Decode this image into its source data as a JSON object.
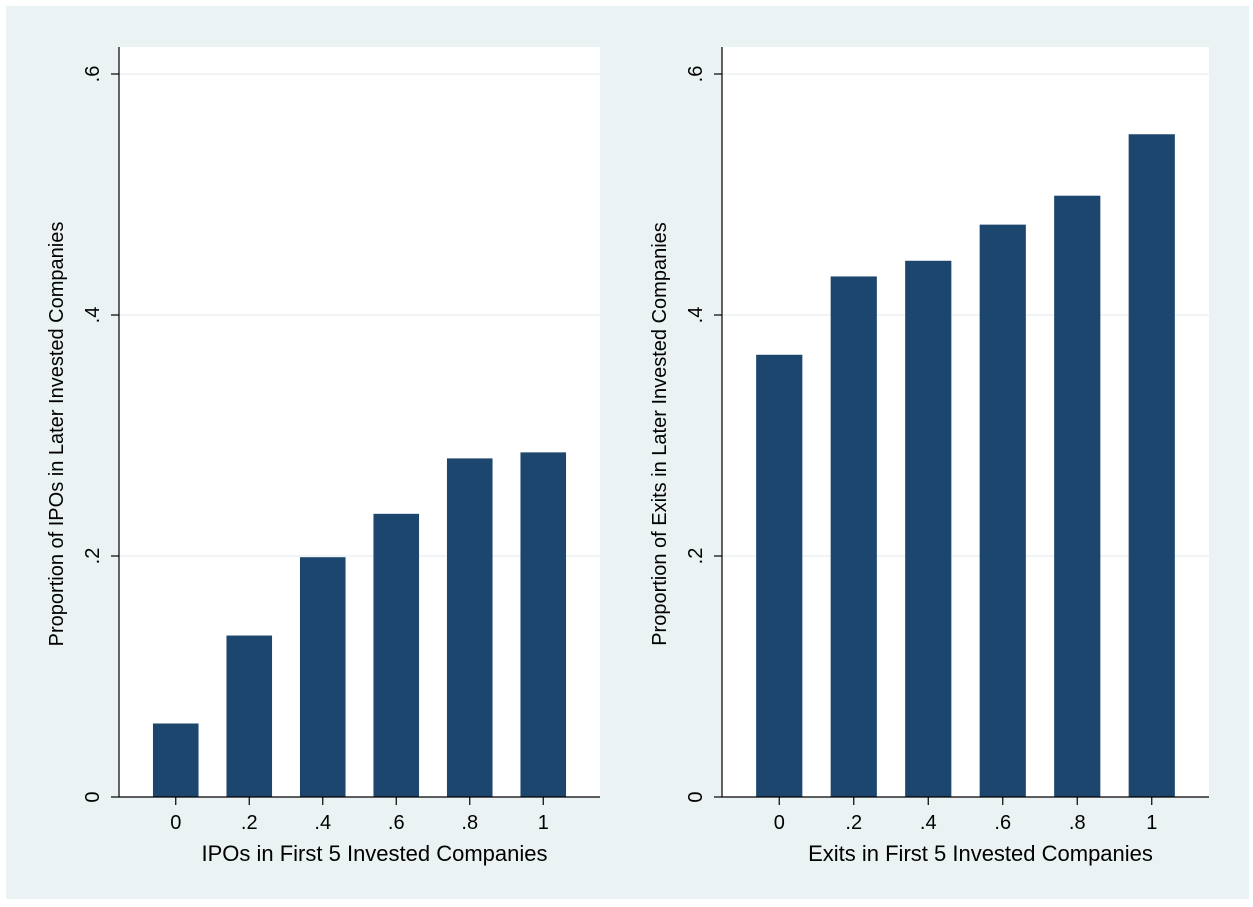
{
  "colors": {
    "background": "#eaf2f3",
    "plot_area": "#ffffff",
    "bar": "#1c466d",
    "grid": "#e6eef0",
    "axis": "#000000"
  },
  "chart_data": [
    {
      "type": "bar",
      "categories": [
        "0",
        ".2",
        ".4",
        ".6",
        ".8",
        "1"
      ],
      "values": [
        0.061,
        0.134,
        0.199,
        0.235,
        0.281,
        0.286
      ],
      "xlabel": "IPOs in First 5 Invested Companies",
      "ylabel": "Proportion of IPOs in Later Invested Companies",
      "ylim": [
        0,
        0.6
      ],
      "yticks": [
        {
          "value": 0,
          "label": "0"
        },
        {
          "value": 0.2,
          "label": ".2"
        },
        {
          "value": 0.4,
          "label": ".4"
        },
        {
          "value": 0.6,
          "label": ".6"
        }
      ],
      "grid": true
    },
    {
      "type": "bar",
      "categories": [
        "0",
        ".2",
        ".4",
        ".6",
        ".8",
        "1"
      ],
      "values": [
        0.367,
        0.432,
        0.445,
        0.475,
        0.499,
        0.55
      ],
      "xlabel": "Exits in First 5 Invested Companies",
      "ylabel": "Proportion of Exits in Later Invested Companies",
      "ylim": [
        0,
        0.6
      ],
      "yticks": [
        {
          "value": 0,
          "label": "0"
        },
        {
          "value": 0.2,
          "label": ".2"
        },
        {
          "value": 0.4,
          "label": ".4"
        },
        {
          "value": 0.6,
          "label": ".6"
        }
      ],
      "grid": true
    }
  ]
}
